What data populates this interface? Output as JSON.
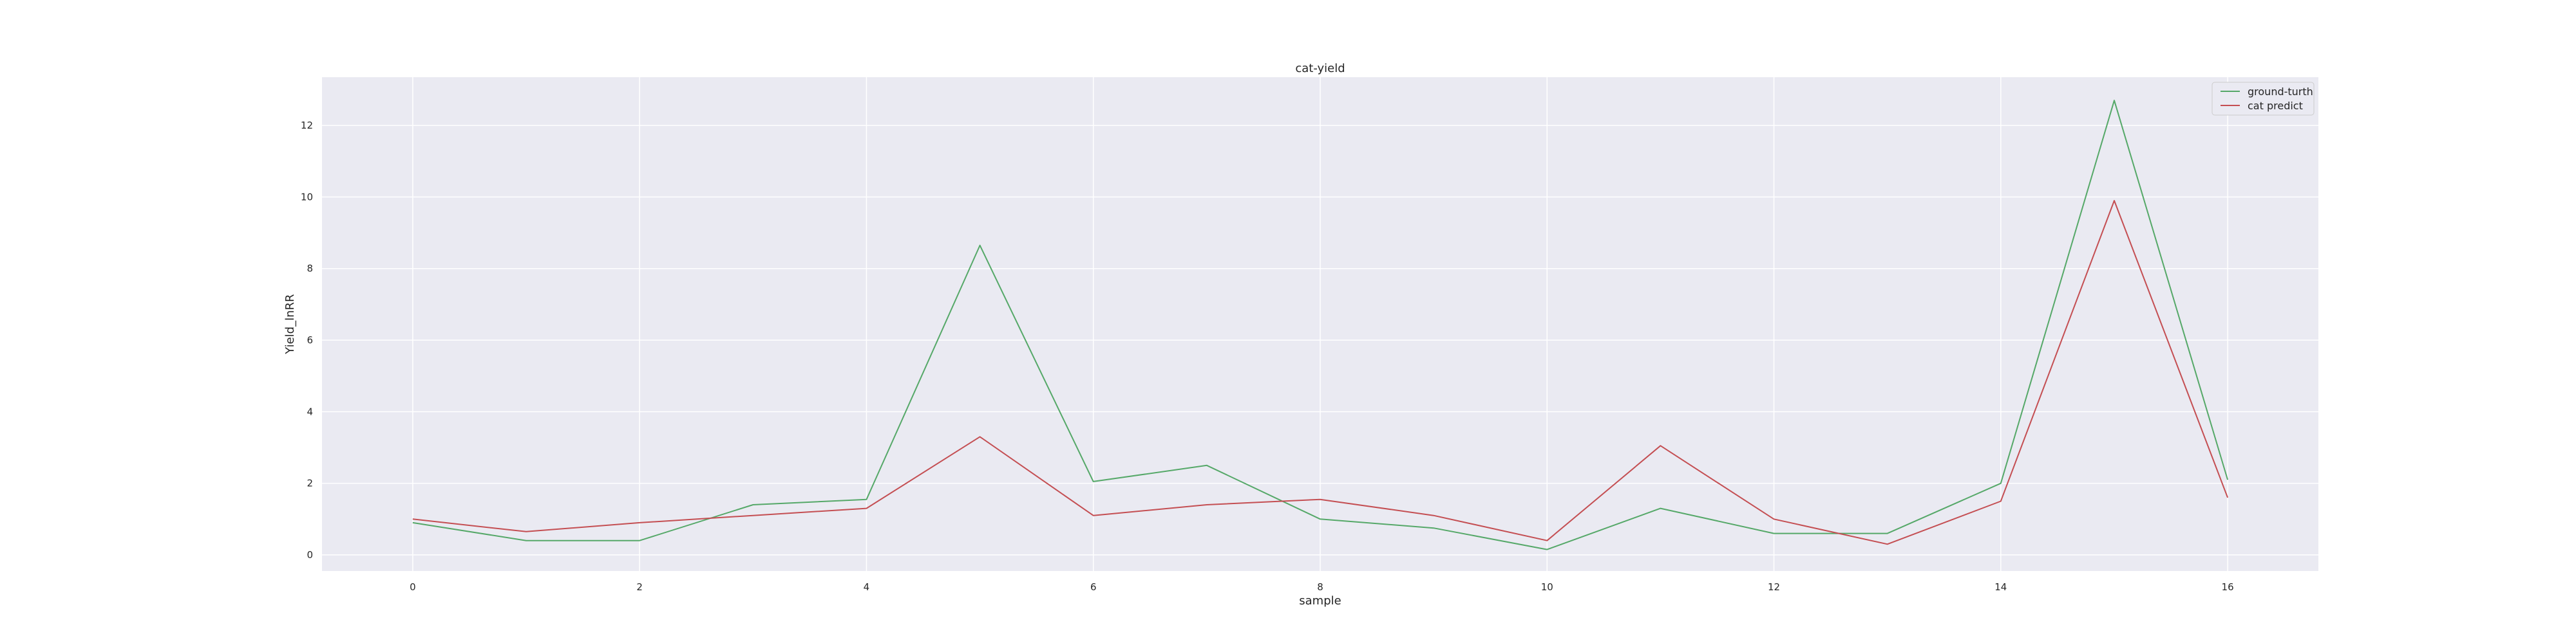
{
  "chart_data": {
    "type": "line",
    "title": "cat-yield",
    "xlabel": "sample",
    "ylabel": "Yield_lnRR",
    "x": [
      0,
      1,
      2,
      3,
      4,
      5,
      6,
      7,
      8,
      9,
      10,
      11,
      12,
      13,
      14,
      15,
      16
    ],
    "series": [
      {
        "name": "ground-turth",
        "color": "#55a868",
        "values": [
          0.9,
          0.4,
          0.4,
          1.4,
          1.55,
          8.65,
          2.05,
          2.5,
          1.0,
          0.75,
          0.15,
          1.3,
          0.6,
          0.6,
          2.0,
          12.7,
          2.1
        ]
      },
      {
        "name": "cat predict",
        "color": "#c44e52",
        "values": [
          1.0,
          0.65,
          0.9,
          1.1,
          1.3,
          3.3,
          1.1,
          1.4,
          1.55,
          1.1,
          0.4,
          3.05,
          1.0,
          0.3,
          1.5,
          9.9,
          1.6
        ]
      }
    ],
    "xticks": [
      0,
      2,
      4,
      6,
      8,
      10,
      12,
      14,
      16
    ],
    "yticks": [
      0,
      2,
      4,
      6,
      8,
      10,
      12
    ],
    "xlim": [
      -0.8,
      16.8
    ],
    "ylim": [
      -0.45,
      13.35
    ],
    "grid": true,
    "legend_position": "top-right",
    "background_color": "#eaeaf2",
    "grid_color": "#ffffff"
  }
}
